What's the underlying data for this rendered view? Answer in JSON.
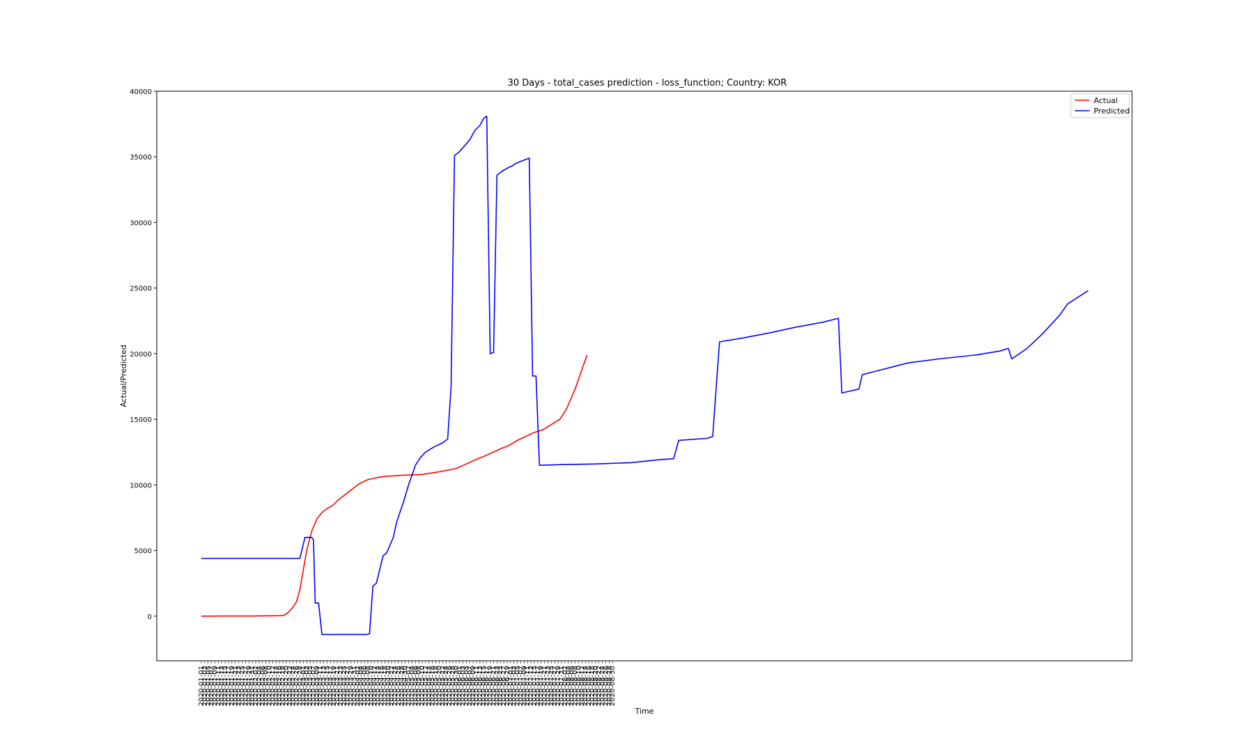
{
  "chart_data": {
    "type": "line",
    "title": "30 Days - total_cases prediction - loss_function; Country: KOR",
    "xlabel": "Time",
    "ylabel": "Actual/Predicted",
    "ylim": [
      -3400,
      40000
    ],
    "yticks": [
      0,
      5000,
      10000,
      15000,
      20000,
      25000,
      30000,
      35000,
      40000
    ],
    "x_start": "2020-01-01",
    "x_end": "2020-08-31",
    "x_last_actual": "2020-07-31",
    "tick_every_days": 2,
    "grid": false,
    "legend_position": "top-right",
    "series": [
      {
        "name": "Actual",
        "color": "#ff0000",
        "points": [
          [
            "2020-01-01",
            0
          ],
          [
            "2020-01-15",
            10
          ],
          [
            "2020-02-01",
            12
          ],
          [
            "2020-02-10",
            30
          ],
          [
            "2020-02-18",
            40
          ],
          [
            "2020-02-20",
            160
          ],
          [
            "2020-02-22",
            400
          ],
          [
            "2020-02-24",
            700
          ],
          [
            "2020-02-26",
            1100
          ],
          [
            "2020-02-28",
            2000
          ],
          [
            "2020-03-01",
            3500
          ],
          [
            "2020-03-03",
            5000
          ],
          [
            "2020-03-06",
            6500
          ],
          [
            "2020-03-09",
            7400
          ],
          [
            "2020-03-12",
            7900
          ],
          [
            "2020-03-15",
            8200
          ],
          [
            "2020-03-18",
            8400
          ],
          [
            "2020-03-22",
            8900
          ],
          [
            "2020-03-26",
            9300
          ],
          [
            "2020-03-30",
            9700
          ],
          [
            "2020-04-03",
            10100
          ],
          [
            "2020-04-08",
            10400
          ],
          [
            "2020-04-13",
            10550
          ],
          [
            "2020-04-18",
            10650
          ],
          [
            "2020-04-30",
            10750
          ],
          [
            "2020-05-10",
            10800
          ],
          [
            "2020-05-20",
            11000
          ],
          [
            "2020-05-30",
            11250
          ],
          [
            "2020-06-05",
            11600
          ],
          [
            "2020-06-10",
            11900
          ],
          [
            "2020-06-15",
            12150
          ],
          [
            "2020-06-20",
            12450
          ],
          [
            "2020-06-25",
            12750
          ],
          [
            "2020-06-30",
            13000
          ],
          [
            "2020-07-05",
            13400
          ],
          [
            "2020-07-10",
            13700
          ],
          [
            "2020-07-15",
            14000
          ],
          [
            "2020-07-20",
            14200
          ],
          [
            "2020-07-25",
            14600
          ],
          [
            "2020-07-30",
            15000
          ],
          [
            "2020-08-03",
            15800
          ],
          [
            "2020-08-08",
            17300
          ],
          [
            "2020-08-12",
            18800
          ],
          [
            "2020-08-15",
            19900
          ]
        ]
      },
      {
        "name": "Predicted",
        "color": "#0000ff",
        "points": [
          [
            "2020-01-01",
            4400
          ],
          [
            "2020-02-28",
            4400
          ],
          [
            "2020-03-02",
            6000
          ],
          [
            "2020-03-06",
            6000
          ],
          [
            "2020-03-07",
            5800
          ],
          [
            "2020-03-08",
            1000
          ],
          [
            "2020-03-10",
            1000
          ],
          [
            "2020-03-12",
            -1400
          ],
          [
            "2020-04-07",
            -1400
          ],
          [
            "2020-04-09",
            -1350
          ],
          [
            "2020-04-11",
            2300
          ],
          [
            "2020-04-13",
            2500
          ],
          [
            "2020-04-17",
            4600
          ],
          [
            "2020-04-19",
            4800
          ],
          [
            "2020-04-23",
            6000
          ],
          [
            "2020-04-25",
            7200
          ],
          [
            "2020-04-29",
            8700
          ],
          [
            "2020-05-02",
            10000
          ],
          [
            "2020-05-06",
            11500
          ],
          [
            "2020-05-09",
            12100
          ],
          [
            "2020-05-12",
            12500
          ],
          [
            "2020-05-17",
            12900
          ],
          [
            "2020-05-22",
            13200
          ],
          [
            "2020-05-25",
            13500
          ],
          [
            "2020-05-27",
            17500
          ],
          [
            "2020-05-29",
            35100
          ],
          [
            "2020-06-01",
            35400
          ],
          [
            "2020-06-07",
            36300
          ],
          [
            "2020-06-10",
            37000
          ],
          [
            "2020-06-13",
            37400
          ],
          [
            "2020-06-15",
            37900
          ],
          [
            "2020-06-17",
            38100
          ],
          [
            "2020-06-19",
            20000
          ],
          [
            "2020-06-21",
            20100
          ],
          [
            "2020-06-23",
            33600
          ],
          [
            "2020-06-26",
            33900
          ],
          [
            "2020-06-30",
            34200
          ],
          [
            "2020-07-02",
            34300
          ],
          [
            "2020-07-04",
            34500
          ],
          [
            "2020-07-08",
            34700
          ],
          [
            "2020-07-12",
            34900
          ],
          [
            "2020-07-14",
            18300
          ],
          [
            "2020-07-16",
            18300
          ],
          [
            "2020-07-18",
            11500
          ],
          [
            "2020-08-01",
            11550
          ],
          [
            "2020-08-20",
            11600
          ],
          [
            "2020-09-10",
            11700
          ],
          [
            "2020-09-25",
            11900
          ],
          [
            "2020-10-05",
            12000
          ],
          [
            "2020-10-08",
            13400
          ],
          [
            "2020-10-25",
            13550
          ],
          [
            "2020-10-28",
            13700
          ],
          [
            "2020-11-01",
            20900
          ],
          [
            "2020-11-15",
            21200
          ],
          [
            "2020-12-01",
            21600
          ],
          [
            "2020-12-15",
            22000
          ],
          [
            "2021-01-01",
            22400
          ],
          [
            "2021-01-10",
            22700
          ],
          [
            "2021-01-12",
            17000
          ],
          [
            "2021-01-15",
            17100
          ],
          [
            "2021-01-22",
            17300
          ],
          [
            "2021-01-24",
            18400
          ],
          [
            "2021-02-05",
            18800
          ],
          [
            "2021-02-20",
            19300
          ],
          [
            "2021-03-10",
            19600
          ],
          [
            "2021-04-01",
            19900
          ],
          [
            "2021-04-15",
            20200
          ],
          [
            "2021-04-20",
            20400
          ],
          [
            "2021-04-22",
            19600
          ],
          [
            "2021-05-01",
            20400
          ],
          [
            "2021-05-10",
            21500
          ],
          [
            "2021-05-20",
            22900
          ],
          [
            "2021-05-25",
            23800
          ],
          [
            "2021-06-06",
            24800
          ]
        ]
      }
    ]
  }
}
